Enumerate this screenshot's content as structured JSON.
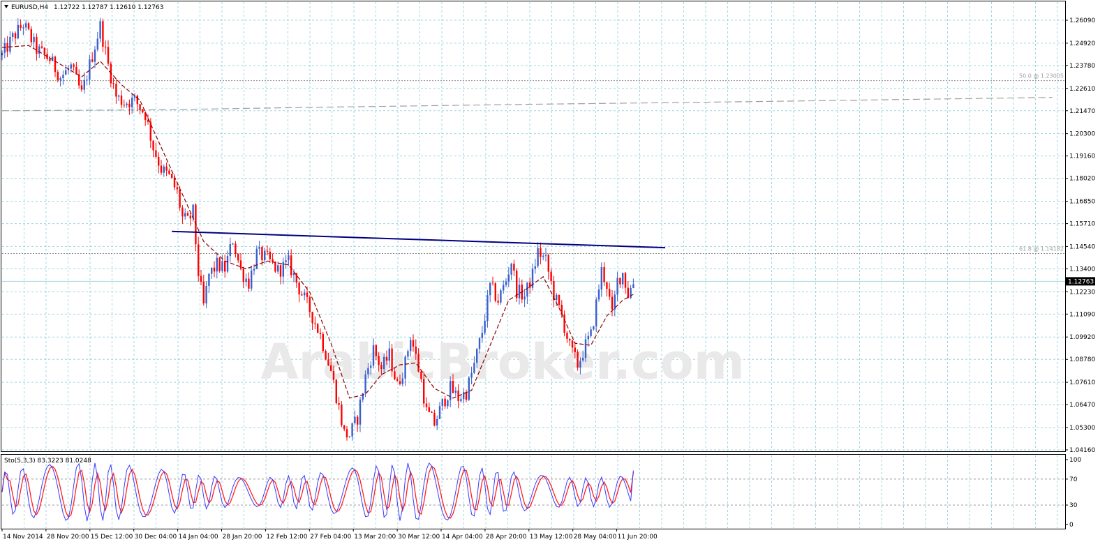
{
  "header": {
    "symbol": "EURUSD,H4",
    "ohlc": "1.12722 1.12787 1.12610 1.12763",
    "indicator_label": "Sto(5,3,3) 83.3223 81.0248"
  },
  "watermark": "ArabicBroker.com",
  "colors": {
    "grid": "#9fd6df",
    "candle_up": "#3a5fcd",
    "candle_down": "#ff0000",
    "moving_average": "#8b0000",
    "trendline": "#000080",
    "long_ma": "#a0a0a0",
    "current_price_line": "#a6d8e0",
    "stoch_main": "#3a3aff",
    "stoch_signal": "#ff2020"
  },
  "chart_data": [
    {
      "type": "line",
      "title": "EURUSD,H4",
      "ylim": [
        1.0416,
        1.2667
      ],
      "y_ticks": [
        1.2609,
        1.2492,
        1.2378,
        1.2261,
        1.2147,
        1.203,
        1.1916,
        1.1802,
        1.1685,
        1.1571,
        1.1454,
        1.134,
        1.1223,
        1.1109,
        1.0992,
        1.0878,
        1.0761,
        1.0647,
        1.053,
        1.0416
      ],
      "y_tick_labels": [
        "1.26090",
        "1.24920",
        "1.23780",
        "1.22610",
        "1.21470",
        "1.20300",
        "1.19160",
        "1.18020",
        "1.16850",
        "1.15710",
        "1.14540",
        "1.13400",
        "1.12230",
        "1.11090",
        "1.09920",
        "1.08780",
        "1.07610",
        "1.06470",
        "1.05300",
        "1.04160"
      ],
      "x_tick_labels": [
        "14 Nov 2014",
        "28 Nov 20:00",
        "15 Dec 12:00",
        "30 Dec 04:00",
        "14 Jan 04:00",
        "28 Jan 20:00",
        "12 Feb 12:00",
        "27 Feb 04:00",
        "13 Mar 20:00",
        "30 Mar 12:00",
        "14 Apr 04:00",
        "28 Apr 20:00",
        "13 May 12:00",
        "28 May 04:00",
        "11 Jun 20:00"
      ],
      "grid": true,
      "current_price": 1.12763,
      "current_price_label": "1.12763",
      "fib_levels": [
        {
          "label": "50.0 @ 1.23005",
          "value": 1.23005
        },
        {
          "label": "61.8 @ 1.14182",
          "value": 1.14182
        }
      ],
      "price_path": [
        [
          0,
          1.243
        ],
        [
          4,
          1.252
        ],
        [
          8,
          1.259
        ],
        [
          13,
          1.246
        ],
        [
          18,
          1.241
        ],
        [
          22,
          1.232
        ],
        [
          26,
          1.237
        ],
        [
          30,
          1.223
        ],
        [
          34,
          1.243
        ],
        [
          37,
          1.258
        ],
        [
          40,
          1.238
        ],
        [
          43,
          1.222
        ],
        [
          46,
          1.219
        ],
        [
          50,
          1.22
        ],
        [
          54,
          1.213
        ],
        [
          57,
          1.196
        ],
        [
          60,
          1.185
        ],
        [
          63,
          1.181
        ],
        [
          66,
          1.173
        ],
        [
          68,
          1.16
        ],
        [
          70,
          1.158
        ],
        [
          72,
          1.163
        ],
        [
          74,
          1.132
        ],
        [
          76,
          1.115
        ],
        [
          78,
          1.131
        ],
        [
          81,
          1.136
        ],
        [
          84,
          1.134
        ],
        [
          87,
          1.149
        ],
        [
          90,
          1.133
        ],
        [
          93,
          1.127
        ],
        [
          96,
          1.142
        ],
        [
          100,
          1.139
        ],
        [
          104,
          1.133
        ],
        [
          108,
          1.137
        ],
        [
          112,
          1.124
        ],
        [
          116,
          1.113
        ],
        [
          120,
          1.1
        ],
        [
          124,
          1.082
        ],
        [
          127,
          1.063
        ],
        [
          129,
          1.05
        ],
        [
          131,
          1.049
        ],
        [
          134,
          1.058
        ],
        [
          137,
          1.079
        ],
        [
          140,
          1.093
        ],
        [
          143,
          1.083
        ],
        [
          146,
          1.09
        ],
        [
          149,
          1.074
        ],
        [
          152,
          1.086
        ],
        [
          154,
          1.1
        ],
        [
          156,
          1.089
        ],
        [
          158,
          1.077
        ],
        [
          160,
          1.061
        ],
        [
          163,
          1.055
        ],
        [
          166,
          1.065
        ],
        [
          169,
          1.073
        ],
        [
          172,
          1.068
        ],
        [
          175,
          1.071
        ],
        [
          178,
          1.085
        ],
        [
          181,
          1.102
        ],
        [
          184,
          1.125
        ],
        [
          187,
          1.118
        ],
        [
          190,
          1.128
        ],
        [
          192,
          1.138
        ],
        [
          194,
          1.123
        ],
        [
          197,
          1.12
        ],
        [
          200,
          1.131
        ],
        [
          202,
          1.143
        ],
        [
          205,
          1.138
        ],
        [
          208,
          1.121
        ],
        [
          211,
          1.11
        ],
        [
          214,
          1.094
        ],
        [
          217,
          1.085
        ],
        [
          220,
          1.095
        ],
        [
          222,
          1.1
        ],
        [
          224,
          1.116
        ],
        [
          226,
          1.133
        ],
        [
          228,
          1.126
        ],
        [
          230,
          1.11
        ],
        [
          232,
          1.128
        ],
        [
          234,
          1.132
        ],
        [
          236,
          1.121
        ],
        [
          238,
          1.127
        ]
      ],
      "moving_average_path": [
        [
          0,
          1.247
        ],
        [
          10,
          1.248
        ],
        [
          20,
          1.24
        ],
        [
          30,
          1.232
        ],
        [
          37,
          1.24
        ],
        [
          45,
          1.228
        ],
        [
          52,
          1.22
        ],
        [
          60,
          1.196
        ],
        [
          68,
          1.172
        ],
        [
          76,
          1.148
        ],
        [
          84,
          1.138
        ],
        [
          92,
          1.134
        ],
        [
          100,
          1.138
        ],
        [
          108,
          1.136
        ],
        [
          116,
          1.122
        ],
        [
          124,
          1.096
        ],
        [
          131,
          1.068
        ],
        [
          137,
          1.07
        ],
        [
          143,
          1.08
        ],
        [
          150,
          1.085
        ],
        [
          156,
          1.086
        ],
        [
          163,
          1.073
        ],
        [
          170,
          1.068
        ],
        [
          177,
          1.072
        ],
        [
          184,
          1.095
        ],
        [
          191,
          1.118
        ],
        [
          198,
          1.124
        ],
        [
          204,
          1.13
        ],
        [
          210,
          1.114
        ],
        [
          216,
          1.096
        ],
        [
          222,
          1.095
        ],
        [
          228,
          1.11
        ],
        [
          234,
          1.118
        ],
        [
          238,
          1.121
        ]
      ],
      "long_ma_path": [
        [
          0,
          1.2147
        ],
        [
          60,
          1.2152
        ],
        [
          120,
          1.2165
        ],
        [
          200,
          1.218
        ],
        [
          280,
          1.2193
        ],
        [
          396,
          1.2215
        ]
      ],
      "trendline": [
        [
          64,
          1.1531
        ],
        [
          250,
          1.1448
        ]
      ]
    },
    {
      "type": "line",
      "title": "Sto(5,3,3)",
      "ylim": [
        0,
        100
      ],
      "y_ticks": [
        100,
        70,
        30,
        0
      ],
      "y_tick_labels": [
        "100",
        "70",
        "30",
        "0"
      ],
      "main_value": 83.3223,
      "signal_value": 81.0248
    }
  ]
}
